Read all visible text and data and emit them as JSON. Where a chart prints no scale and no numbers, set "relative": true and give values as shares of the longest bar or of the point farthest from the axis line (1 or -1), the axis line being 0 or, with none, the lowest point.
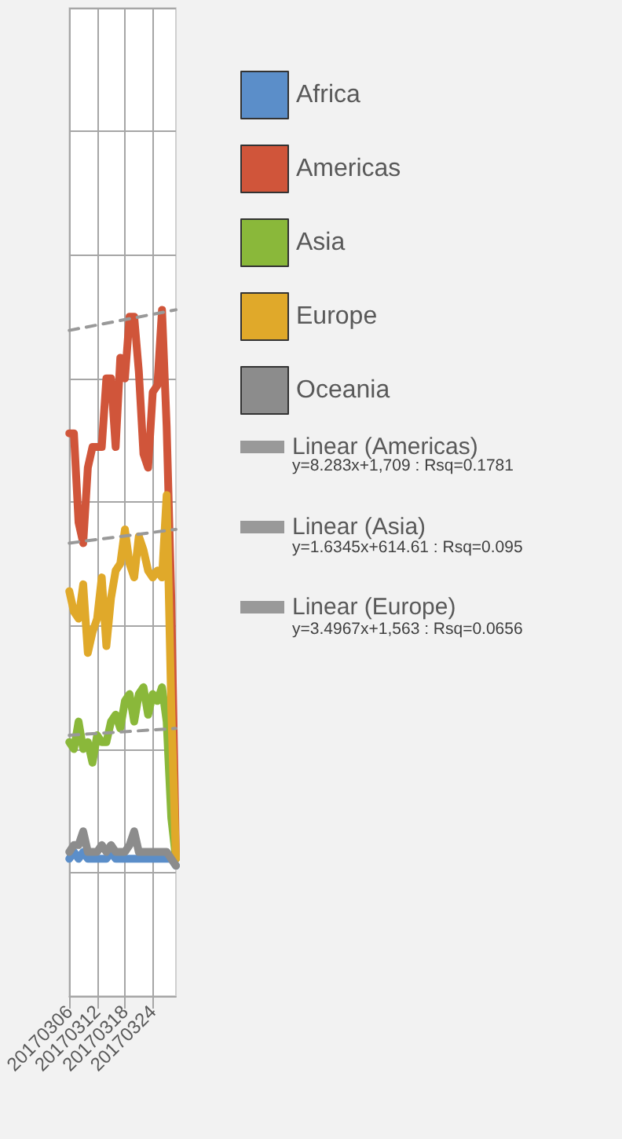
{
  "chart_data": {
    "type": "line",
    "relative": true,
    "grid": true,
    "legend": "right",
    "marker": "none",
    "categories": [
      "20170306",
      null,
      null,
      null,
      null,
      null,
      "20170312",
      null,
      null,
      null,
      null,
      null,
      "20170318",
      null,
      null,
      null,
      null,
      null,
      "20170324",
      null,
      null,
      null,
      null,
      null
    ],
    "series": [
      {
        "name": "Africa",
        "color": "#5b8ec9",
        "values": [
          0.2,
          0.21,
          0.2,
          0.21,
          0.2,
          0.2,
          0.2,
          0.2,
          0.2,
          0.21,
          0.2,
          0.2,
          0.2,
          0.2,
          0.2,
          0.2,
          0.2,
          0.2,
          0.2,
          0.2,
          0.2,
          0.2,
          0.2,
          0.19
        ]
      },
      {
        "name": "Americas",
        "color": "#d0553a",
        "values": [
          0.82,
          0.82,
          0.69,
          0.66,
          0.77,
          0.8,
          0.8,
          0.8,
          0.9,
          0.9,
          0.8,
          0.93,
          0.9,
          0.99,
          0.99,
          0.91,
          0.79,
          0.77,
          0.88,
          0.89,
          1.0,
          0.83,
          0.58,
          0.2
        ]
      },
      {
        "name": "Asia",
        "color": "#8ab83a",
        "values": [
          0.37,
          0.36,
          0.4,
          0.36,
          0.37,
          0.34,
          0.38,
          0.37,
          0.37,
          0.4,
          0.41,
          0.39,
          0.43,
          0.44,
          0.4,
          0.44,
          0.45,
          0.41,
          0.44,
          0.43,
          0.45,
          0.4,
          0.26,
          0.2
        ]
      },
      {
        "name": "Europe",
        "color": "#e0a92a",
        "values": [
          0.59,
          0.56,
          0.55,
          0.6,
          0.5,
          0.53,
          0.55,
          0.61,
          0.51,
          0.58,
          0.62,
          0.63,
          0.68,
          0.63,
          0.61,
          0.67,
          0.65,
          0.62,
          0.61,
          0.62,
          0.61,
          0.73,
          0.42,
          0.2
        ]
      },
      {
        "name": "Oceania",
        "color": "#8c8c8c",
        "values": [
          0.21,
          0.22,
          0.22,
          0.24,
          0.21,
          0.21,
          0.21,
          0.22,
          0.21,
          0.22,
          0.21,
          0.21,
          0.21,
          0.22,
          0.24,
          0.21,
          0.21,
          0.21,
          0.21,
          0.21,
          0.21,
          0.21,
          0.2,
          0.19
        ]
      },
      {
        "name": "Linear (Americas)",
        "color": "#999999",
        "line_style": "dashed",
        "values": [
          0.97,
          null,
          null,
          null,
          null,
          null,
          null,
          null,
          null,
          null,
          null,
          null,
          null,
          null,
          null,
          null,
          null,
          null,
          null,
          null,
          null,
          null,
          null,
          1.0
        ]
      },
      {
        "name": "Linear (Asia)",
        "color": "#999999",
        "line_style": "dashed",
        "values": [
          0.38,
          null,
          null,
          null,
          null,
          null,
          null,
          null,
          null,
          null,
          null,
          null,
          null,
          null,
          null,
          null,
          null,
          null,
          null,
          null,
          null,
          null,
          null,
          0.39
        ]
      },
      {
        "name": "Linear (Europe)",
        "color": "#999999",
        "line_style": "dashed",
        "values": [
          0.66,
          null,
          null,
          null,
          null,
          null,
          null,
          null,
          null,
          null,
          null,
          null,
          null,
          null,
          null,
          null,
          null,
          null,
          null,
          null,
          null,
          null,
          null,
          0.68
        ]
      }
    ],
    "annotations": [
      "y=8.283x+1,709 : Rsq=0.1781",
      "y=1.6345x+614.61 : Rsq=0.095",
      "y=3.4967x+1,563 : Rsq=0.0656"
    ]
  }
}
